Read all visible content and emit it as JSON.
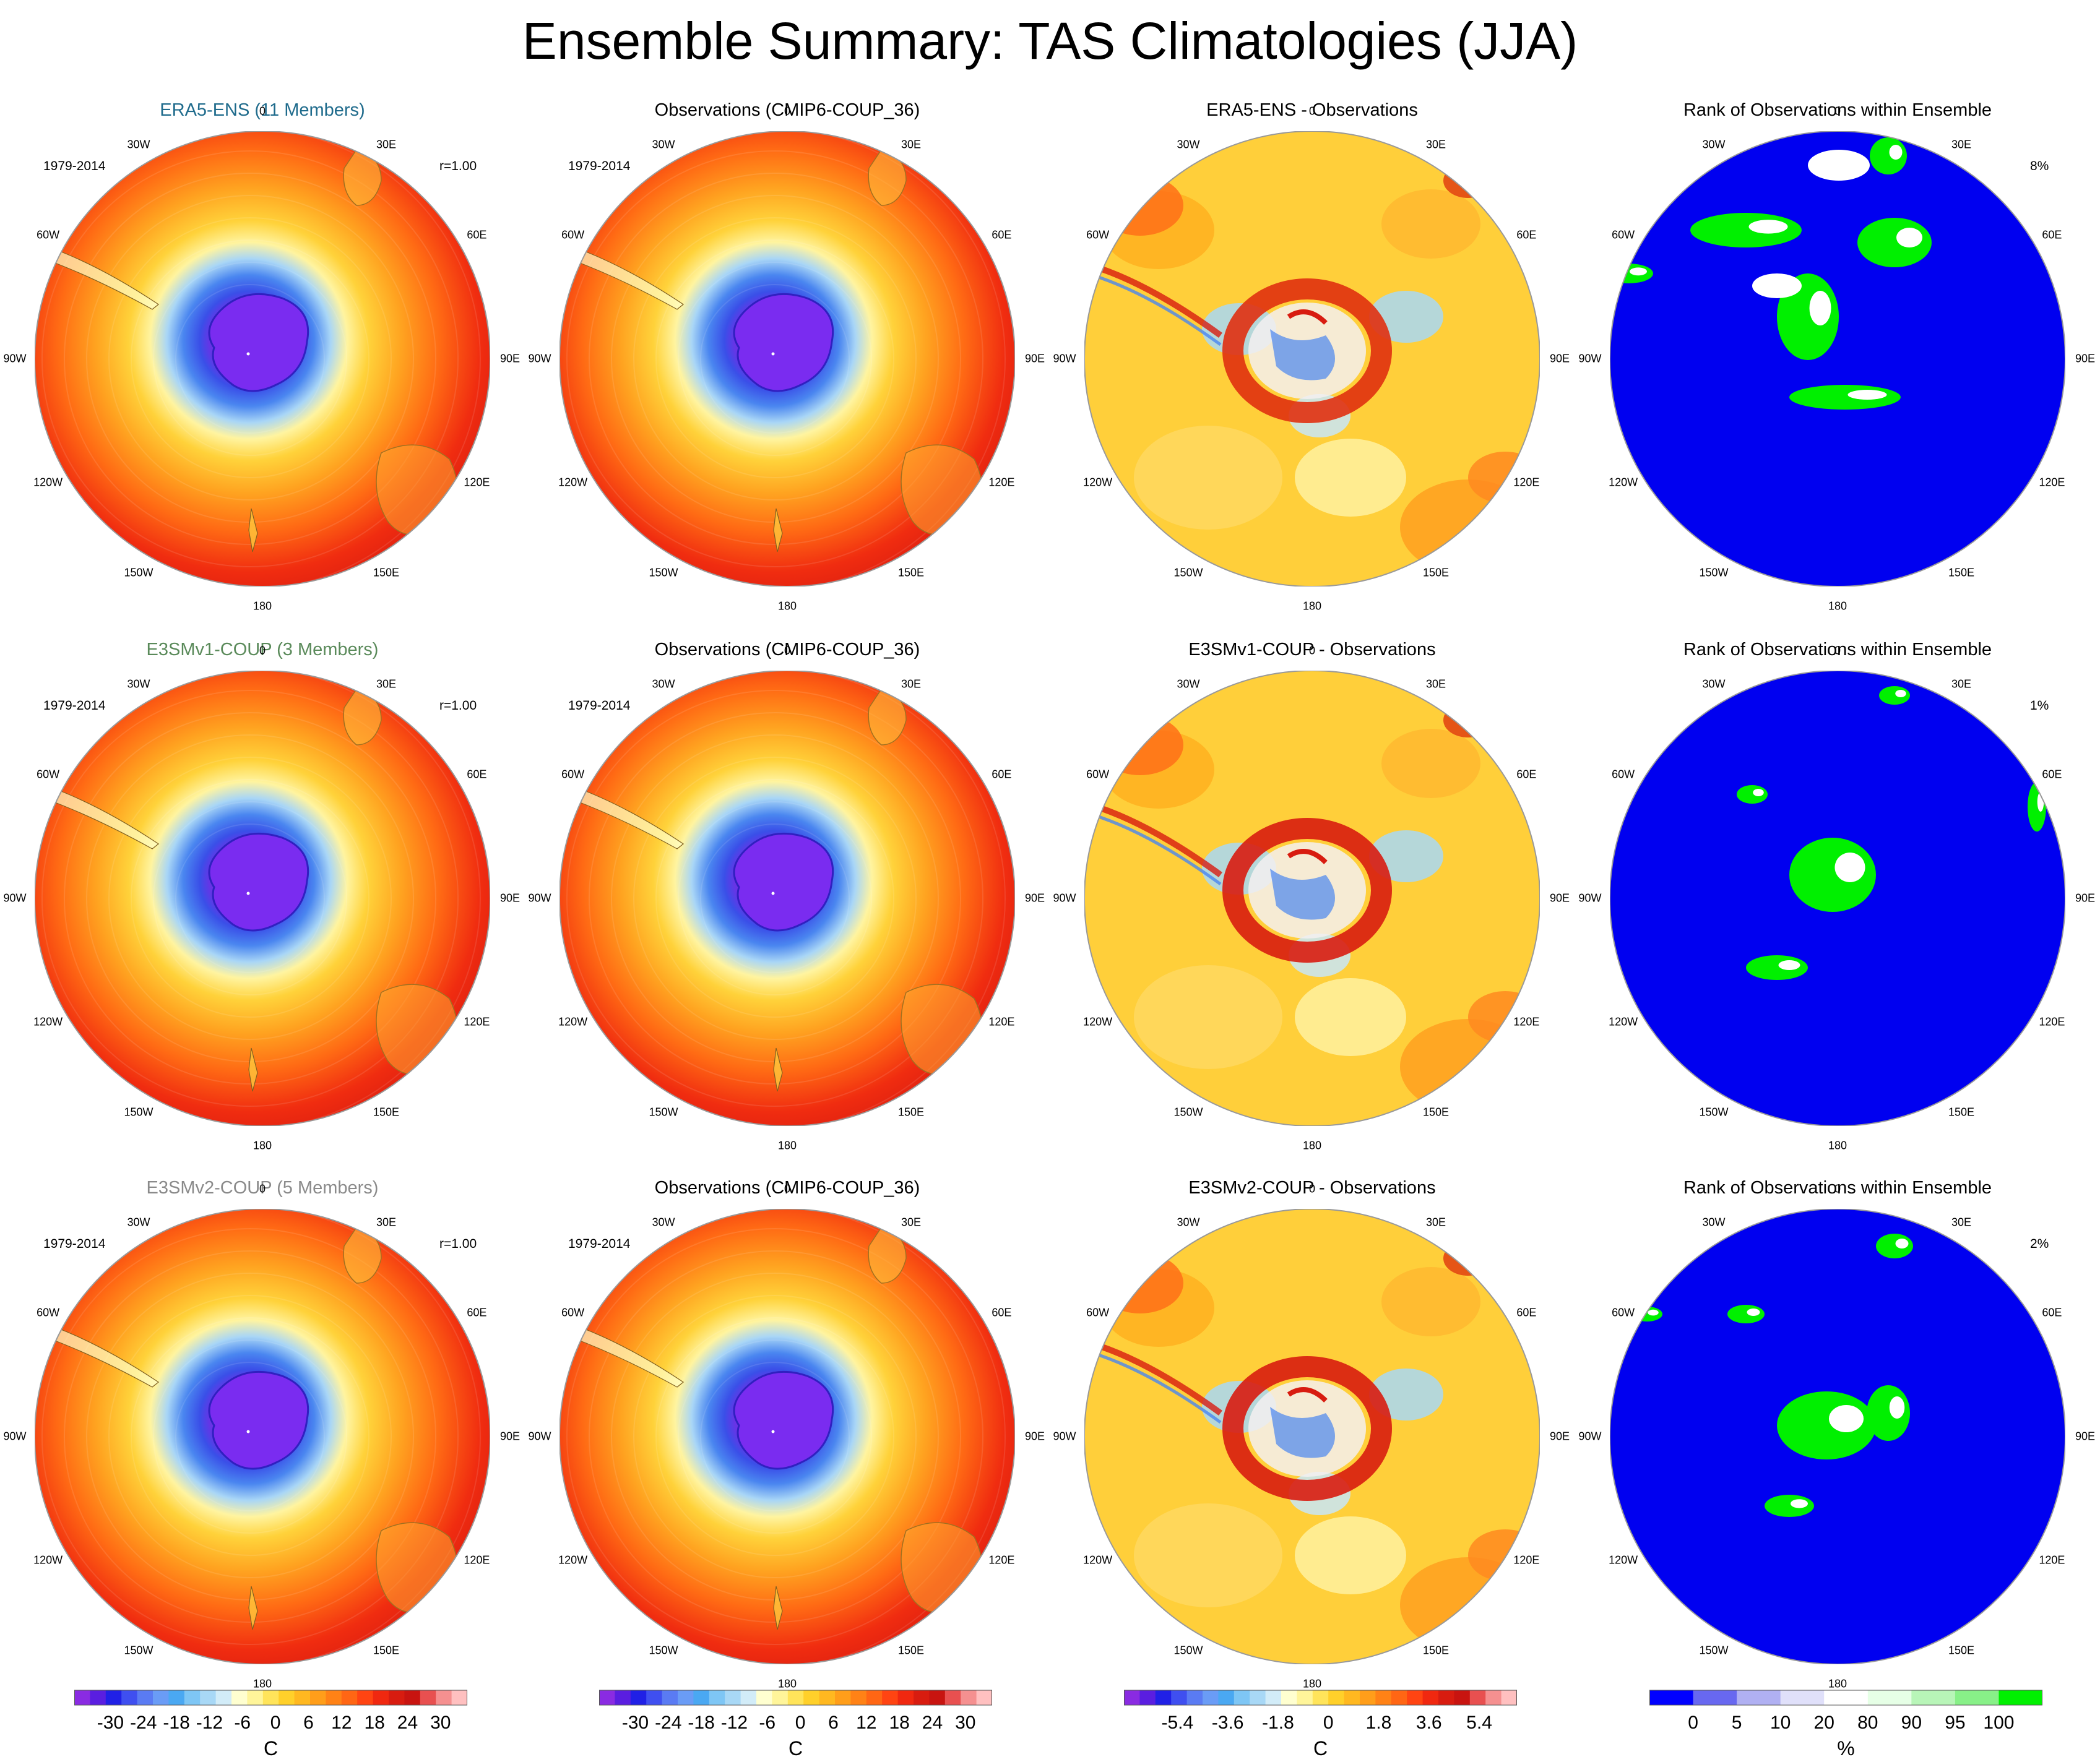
{
  "title": "Ensemble Summary: TAS Climatologies (JJA)",
  "lon_labels": [
    "0",
    "30E",
    "60E",
    "90E",
    "120E",
    "150E",
    "180",
    "150W",
    "120W",
    "90W",
    "60W",
    "30W"
  ],
  "rows": [
    {
      "model_title": "ERA5-ENS (11 Members)",
      "model_title_color": "#1f6b8c",
      "period": "1979-2014",
      "corr": "r=1.00",
      "obs_title": "Observations (CMIP6-COUP_36)",
      "obs_period": "1979-2014",
      "diff_title": "ERA5-ENS - Observations",
      "rank_title": "Rank of Observations within Ensemble",
      "rank_pct": "8%"
    },
    {
      "model_title": "E3SMv1-COUP (3 Members)",
      "model_title_color": "#5a8a5a",
      "period": "1979-2014",
      "corr": "r=1.00",
      "obs_title": "Observations (CMIP6-COUP_36)",
      "obs_period": "1979-2014",
      "diff_title": "E3SMv1-COUP - Observations",
      "rank_title": "Rank of Observations within Ensemble",
      "rank_pct": "1%"
    },
    {
      "model_title": "E3SMv2-COUP (5 Members)",
      "model_title_color": "#8a8a8a",
      "period": "1979-2014",
      "corr": "r=1.00",
      "obs_title": "Observations (CMIP6-COUP_36)",
      "obs_period": "1979-2014",
      "diff_title": "E3SMv2-COUP - Observations",
      "rank_title": "Rank of Observations within Ensemble",
      "rank_pct": "2%"
    }
  ],
  "colorbars": {
    "temp": {
      "ticks": [
        "-30",
        "-24",
        "-18",
        "-12",
        "-6",
        "0",
        "6",
        "12",
        "18",
        "24",
        "30"
      ],
      "unit": "C",
      "colors": [
        "#8a2be2",
        "#5a1ee0",
        "#2020e6",
        "#3f4ff0",
        "#5a7bf3",
        "#6a9cf6",
        "#4aa8f2",
        "#7ec6f5",
        "#a8d8f6",
        "#d2ecf8",
        "#ffffd0",
        "#fff59a",
        "#ffe45a",
        "#ffd02a",
        "#ffb820",
        "#ff9e1a",
        "#ff8216",
        "#ff6614",
        "#ff4412",
        "#f02810",
        "#d81c10",
        "#c81410",
        "#e85050",
        "#f59090",
        "#ffc0c0"
      ]
    },
    "diff": {
      "ticks": [
        "-5.4",
        "-3.6",
        "-1.8",
        "0",
        "1.8",
        "3.6",
        "5.4"
      ],
      "unit": "C",
      "colors": [
        "#8a2be2",
        "#5a1ee0",
        "#2020e6",
        "#3f4ff0",
        "#5a7bf3",
        "#6a9cf6",
        "#4aa8f2",
        "#7ec6f5",
        "#a8d8f6",
        "#d2ecf8",
        "#ffffd0",
        "#fff59a",
        "#ffe45a",
        "#ffd02a",
        "#ffb820",
        "#ff9e1a",
        "#ff8216",
        "#ff6614",
        "#ff4412",
        "#f02810",
        "#d81c10",
        "#c81410",
        "#e85050",
        "#f59090",
        "#ffc0c0"
      ]
    },
    "rank": {
      "ticks": [
        "0",
        "5",
        "10",
        "20",
        "80",
        "90",
        "95",
        "100"
      ],
      "unit": "%",
      "colors": [
        "#0000ff",
        "#6868f0",
        "#b0b0f2",
        "#e0e0fa",
        "#ffffff",
        "#e6ffe6",
        "#b8f5b8",
        "#88f088",
        "#00f000"
      ]
    }
  }
}
